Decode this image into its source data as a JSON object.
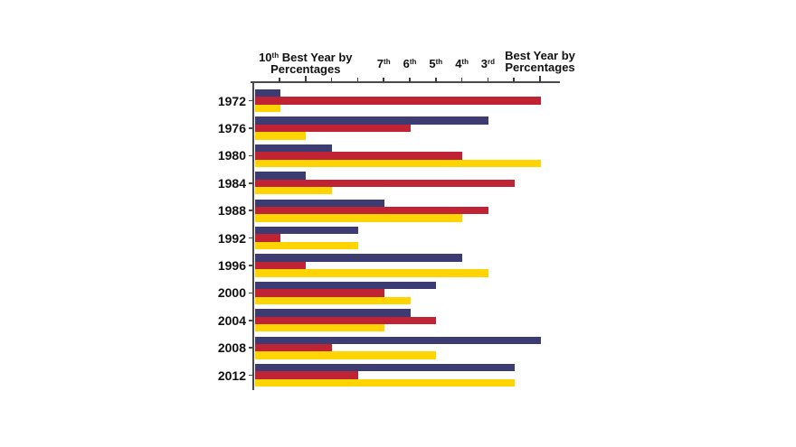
{
  "chart_data": {
    "type": "bar",
    "orientation": "horizontal",
    "categories": [
      "1972",
      "1976",
      "1980",
      "1984",
      "1988",
      "1992",
      "1996",
      "2000",
      "2004",
      "2008",
      "2012"
    ],
    "series": [
      {
        "name": "navy",
        "color": "#3C3C72",
        "ranks": [
          11,
          3,
          9,
          10,
          7,
          8,
          4,
          5,
          6,
          1,
          2
        ]
      },
      {
        "name": "red",
        "color": "#C02333",
        "ranks": [
          1,
          6,
          4,
          2,
          3,
          11,
          10,
          7,
          5,
          9,
          8
        ]
      },
      {
        "name": "yellow",
        "color": "#FFD400",
        "ranks": [
          11,
          10,
          1,
          9,
          4,
          8,
          3,
          6,
          7,
          5,
          2
        ]
      }
    ],
    "value_semantics": "rank of the year by percentage, 1 = best; longer bar = better rank",
    "x_axis": {
      "position": "top",
      "range_ranks": [
        12,
        1
      ],
      "end_label_left": {
        "num": "10",
        "sup": "th",
        "rest": " Best Year by",
        "line2": "Percentages"
      },
      "end_label_right": {
        "line1": "Best Year by",
        "line2": "Percentages"
      },
      "ticks": [
        {
          "rank": 11
        },
        {
          "rank": 10,
          "major": true
        },
        {
          "rank": 9
        },
        {
          "rank": 8
        },
        {
          "rank": 7,
          "num": "7",
          "sup": "th"
        },
        {
          "rank": 6,
          "num": "6",
          "sup": "th"
        },
        {
          "rank": 5,
          "num": "5",
          "sup": "th"
        },
        {
          "rank": 4,
          "num": "4",
          "sup": "th"
        },
        {
          "rank": 3,
          "num": "3",
          "sup": "rd"
        },
        {
          "rank": 2
        },
        {
          "rank": 1,
          "major": true
        }
      ]
    },
    "grid": false,
    "legend": false,
    "axis_color": "#4a4a4a"
  }
}
